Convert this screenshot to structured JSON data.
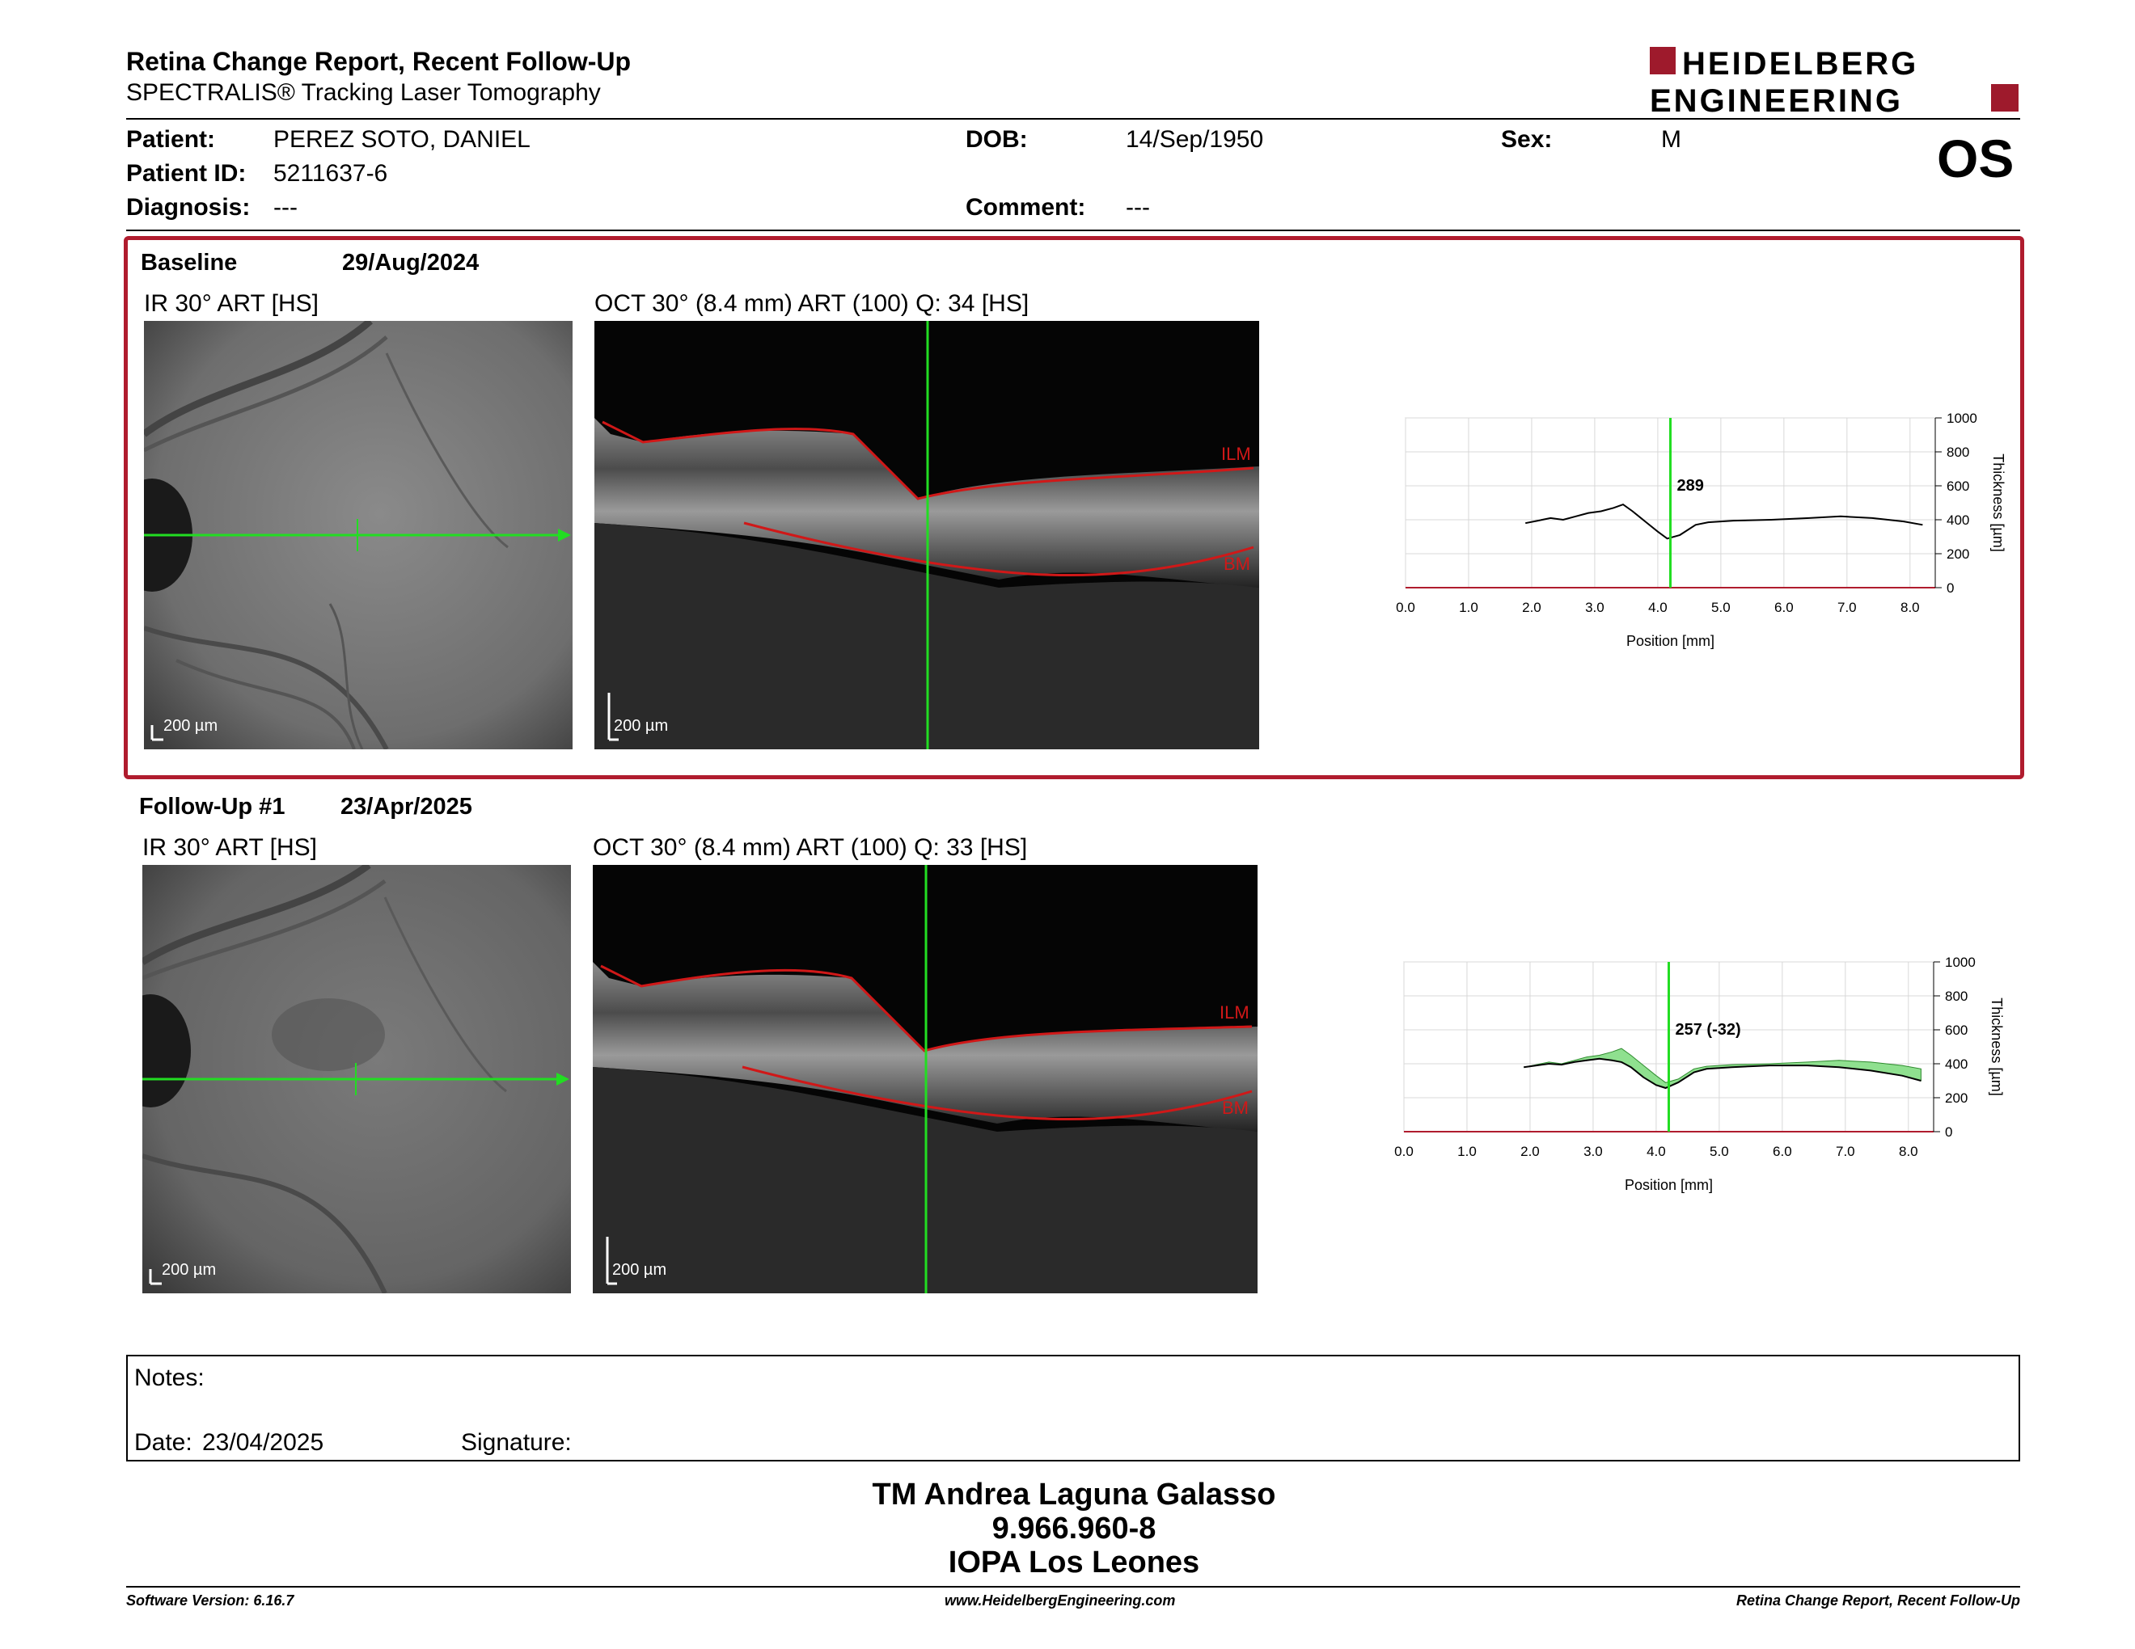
{
  "header": {
    "title": "Retina Change Report, Recent Follow-Up",
    "subtitle": "SPECTRALIS® Tracking Laser Tomography",
    "logo_line1": "HEIDELBERG",
    "logo_line2": "ENGINEERING",
    "eye": "OS"
  },
  "patient": {
    "name_label": "Patient:",
    "name": "PEREZ SOTO, DANIEL",
    "id_label": "Patient ID:",
    "id": "5211637-6",
    "diagnosis_label": "Diagnosis:",
    "diagnosis": "---",
    "dob_label": "DOB:",
    "dob": "14/Sep/1950",
    "comment_label": "Comment:",
    "comment": "---",
    "sex_label": "Sex:",
    "sex": "M"
  },
  "exams": [
    {
      "label": "Baseline",
      "date": "29/Aug/2024",
      "ir_caption": "IR 30° ART [HS]",
      "oct_caption": "OCT 30° (8.4 mm) ART (100) Q: 34 [HS]",
      "scale": "200 µm",
      "ilm": "ILM",
      "bm": "BM",
      "cursor_value": "289",
      "selected": true
    },
    {
      "label": "Follow-Up #1",
      "date": "23/Apr/2025",
      "ir_caption": "IR 30° ART [HS]",
      "oct_caption": "OCT 30° (8.4 mm) ART (100) Q: 33 [HS]",
      "scale": "200 µm",
      "ilm": "ILM",
      "bm": "BM",
      "cursor_value": "257 (-32)",
      "selected": false
    }
  ],
  "chart_data": [
    {
      "type": "line",
      "xlabel": "Position [mm]",
      "ylabel": "Thickness [µm]",
      "xlim": [
        0,
        8.4
      ],
      "ylim": [
        0,
        1000
      ],
      "xticks": [
        "0.0",
        "1.0",
        "2.0",
        "3.0",
        "4.0",
        "5.0",
        "6.0",
        "7.0",
        "8.0"
      ],
      "yticks": [
        "0",
        "200",
        "400",
        "600",
        "800",
        "1000"
      ],
      "cursor_x": 4.2,
      "series": [
        {
          "values": [
            [
              1.9,
              380
            ],
            [
              2.1,
              395
            ],
            [
              2.3,
              410
            ],
            [
              2.5,
              400
            ],
            [
              2.7,
              420
            ],
            [
              2.9,
              440
            ],
            [
              3.1,
              450
            ],
            [
              3.3,
              470
            ],
            [
              3.45,
              490
            ],
            [
              3.6,
              450
            ],
            [
              3.8,
              390
            ],
            [
              4.0,
              330
            ],
            [
              4.15,
              289
            ],
            [
              4.35,
              310
            ],
            [
              4.6,
              370
            ],
            [
              4.8,
              385
            ],
            [
              5.2,
              395
            ],
            [
              5.8,
              400
            ],
            [
              6.4,
              410
            ],
            [
              6.9,
              420
            ],
            [
              7.4,
              410
            ],
            [
              7.9,
              390
            ],
            [
              8.2,
              370
            ]
          ]
        }
      ]
    },
    {
      "type": "area",
      "xlabel": "Position [mm]",
      "ylabel": "Thickness [µm]",
      "xlim": [
        0,
        8.4
      ],
      "ylim": [
        0,
        1000
      ],
      "xticks": [
        "0.0",
        "1.0",
        "2.0",
        "3.0",
        "4.0",
        "5.0",
        "6.0",
        "7.0",
        "8.0"
      ],
      "yticks": [
        "0",
        "200",
        "400",
        "600",
        "800",
        "1000"
      ],
      "cursor_x": 4.2,
      "series": [
        {
          "values": [
            [
              1.9,
              380
            ],
            [
              2.1,
              395
            ],
            [
              2.3,
              410
            ],
            [
              2.5,
              400
            ],
            [
              2.7,
              420
            ],
            [
              2.9,
              440
            ],
            [
              3.1,
              450
            ],
            [
              3.3,
              470
            ],
            [
              3.45,
              490
            ],
            [
              3.6,
              450
            ],
            [
              3.8,
              390
            ],
            [
              4.0,
              330
            ],
            [
              4.15,
              289
            ],
            [
              4.35,
              310
            ],
            [
              4.6,
              370
            ],
            [
              4.8,
              385
            ],
            [
              5.2,
              395
            ],
            [
              5.8,
              400
            ],
            [
              6.4,
              410
            ],
            [
              6.9,
              420
            ],
            [
              7.4,
              410
            ],
            [
              7.9,
              390
            ],
            [
              8.2,
              370
            ]
          ]
        },
        {
          "values": [
            [
              1.9,
              380
            ],
            [
              2.1,
              390
            ],
            [
              2.3,
              400
            ],
            [
              2.5,
              395
            ],
            [
              2.7,
              410
            ],
            [
              2.9,
              420
            ],
            [
              3.1,
              430
            ],
            [
              3.3,
              420
            ],
            [
              3.45,
              410
            ],
            [
              3.6,
              380
            ],
            [
              3.8,
              320
            ],
            [
              4.0,
              275
            ],
            [
              4.15,
              257
            ],
            [
              4.35,
              290
            ],
            [
              4.6,
              350
            ],
            [
              4.8,
              370
            ],
            [
              5.2,
              380
            ],
            [
              5.8,
              390
            ],
            [
              6.4,
              390
            ],
            [
              6.9,
              380
            ],
            [
              7.4,
              360
            ],
            [
              7.9,
              330
            ],
            [
              8.2,
              300
            ]
          ]
        }
      ]
    }
  ],
  "notes": {
    "label": "Notes:",
    "date_label": "Date:",
    "date": "23/04/2025",
    "signature_label": "Signature:"
  },
  "signatory": {
    "name": "TM Andrea Laguna Galasso",
    "id": "9.966.960-8",
    "org": "IOPA Los Leones"
  },
  "footer": {
    "left": "Software Version: 6.16.7",
    "center": "www.HeidelbergEngineering.com",
    "right": "Retina Change Report, Recent Follow-Up"
  },
  "colors": {
    "accent": "#b01c2e",
    "cursor": "#22dd22",
    "change_fill": "#8fe08f"
  }
}
